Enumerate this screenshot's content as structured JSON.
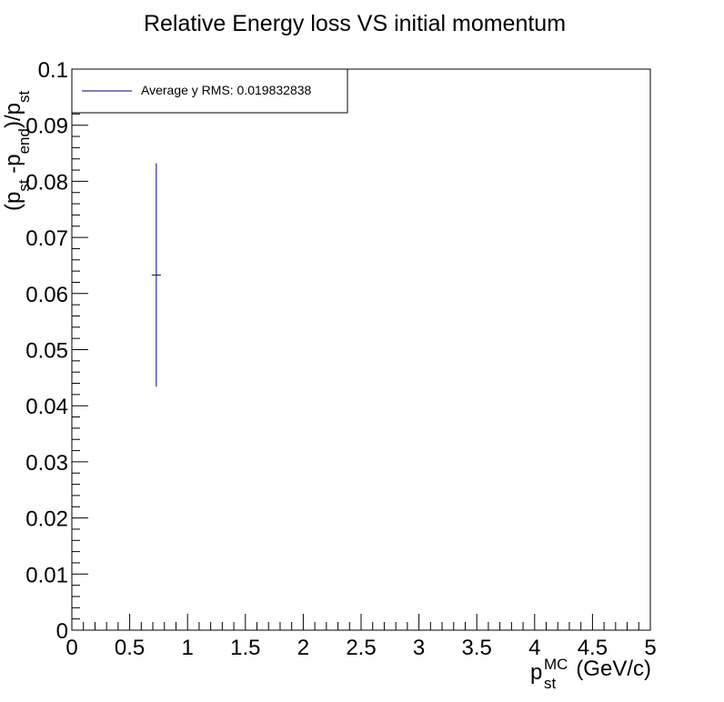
{
  "chart_data": {
    "type": "scatter",
    "title": "Relative Energy loss VS initial momentum",
    "xlabel": {
      "base": "p",
      "sup": "MC",
      "sub": "st",
      "unit": "(GeV/c)"
    },
    "ylabel_parts": [
      {
        "t": "(p",
        "s": "normal"
      },
      {
        "t": "st",
        "s": "sub"
      },
      {
        "t": " -p",
        "s": "normal"
      },
      {
        "t": "end",
        "s": "sub"
      },
      {
        "t": ")/p",
        "s": "normal"
      },
      {
        "t": "st",
        "s": "sub"
      }
    ],
    "xlim": [
      0,
      5
    ],
    "ylim": [
      0,
      0.1
    ],
    "x_ticks": [
      "0",
      "0.5",
      "1",
      "1.5",
      "2",
      "2.5",
      "3",
      "3.5",
      "4",
      "4.5",
      "5"
    ],
    "y_ticks": [
      "0",
      "0.01",
      "0.02",
      "0.03",
      "0.04",
      "0.05",
      "0.06",
      "0.07",
      "0.08",
      "0.09",
      "0.1"
    ],
    "grid": false,
    "legend": {
      "position": "top-left",
      "entries": [
        "Average y RMS: 0.019832838"
      ]
    },
    "series": [
      {
        "color": "#000080",
        "points": [
          {
            "x": 0.73,
            "y": 0.0633,
            "yerr": 0.0199
          }
        ]
      }
    ]
  }
}
